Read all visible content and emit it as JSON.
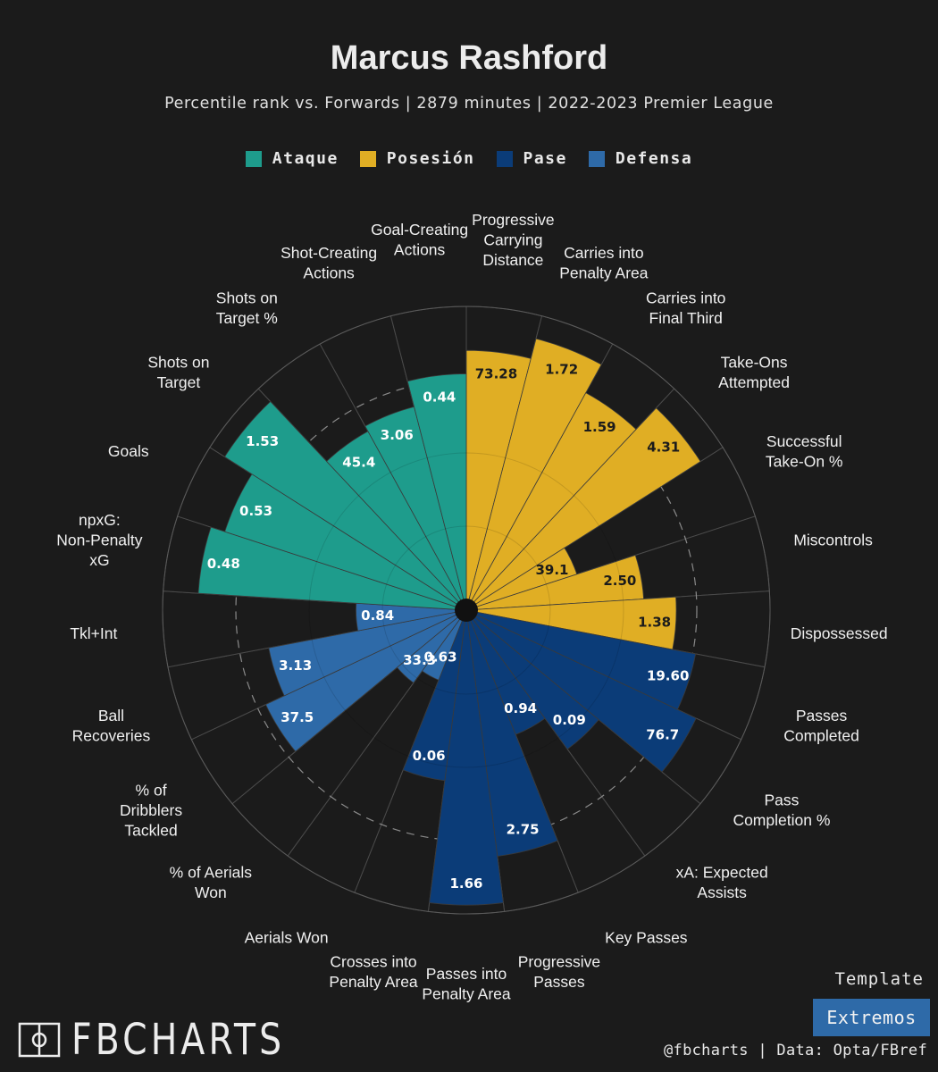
{
  "header": {
    "title": "Marcus Rashford",
    "subtitle": "Percentile rank vs. Forwards | 2879 minutes | 2022-2023 Premier League"
  },
  "legend": [
    {
      "name": "Ataque",
      "color": "#1e9c8c"
    },
    {
      "name": "Posesión",
      "color": "#e0ae24"
    },
    {
      "name": "Pase",
      "color": "#0b3c78"
    },
    {
      "name": "Defensa",
      "color": "#2e6aa8"
    }
  ],
  "footer": {
    "brand": "FBCHARTS",
    "template_label": "Template",
    "template_value": "Extremos",
    "credit": "@fbcharts | Data: Opta/FBref"
  },
  "chart_data": {
    "type": "polar-bar",
    "title": "Marcus Rashford",
    "radial_max": 100,
    "ring_levels": [
      25,
      50,
      75,
      100
    ],
    "dashed_ring": 75,
    "params": [
      {
        "label": "Progressive Carrying Distance",
        "group": "Posesión",
        "value": "73.28",
        "percentile": 85
      },
      {
        "label": "Carries into Penalty Area",
        "group": "Posesión",
        "value": "1.72",
        "percentile": 92
      },
      {
        "label": "Carries into Final Third",
        "group": "Posesión",
        "value": "1.59",
        "percentile": 81
      },
      {
        "label": "Take-Ons Attempted",
        "group": "Posesión",
        "value": "4.31",
        "percentile": 91
      },
      {
        "label": "Successful Take-On %",
        "group": "Posesión",
        "value": "39.1",
        "percentile": 36
      },
      {
        "label": "Miscontrols",
        "group": "Posesión",
        "value": "2.50",
        "percentile": 57
      },
      {
        "label": "Dispossessed",
        "group": "Posesión",
        "value": "1.38",
        "percentile": 68
      },
      {
        "label": "Passes Completed",
        "group": "Pase",
        "value": "19.60",
        "percentile": 76
      },
      {
        "label": "Pass Completion %",
        "group": "Pase",
        "value": "76.7",
        "percentile": 83
      },
      {
        "label": "xA: Expected Assists",
        "group": "Pase",
        "value": "0.09",
        "percentile": 55
      },
      {
        "label": "Key Passes",
        "group": "Pase",
        "value": "0.94",
        "percentile": 42
      },
      {
        "label": "Progressive Passes",
        "group": "Pase",
        "value": "2.75",
        "percentile": 81
      },
      {
        "label": "Passes into Penalty Area",
        "group": "Pase",
        "value": "1.66",
        "percentile": 97
      },
      {
        "label": "Crosses into Penalty Area",
        "group": "Pase",
        "value": "0.06",
        "percentile": 55
      },
      {
        "label": "Aerials Won",
        "group": "Defensa",
        "value": "0.63",
        "percentile": 22
      },
      {
        "label": "% of Aerials Won",
        "group": "Defensa",
        "value": "33.3",
        "percentile": 27
      },
      {
        "label": "% of Dribblers Tackled",
        "group": "Defensa",
        "value": "37.5",
        "percentile": 72
      },
      {
        "label": "Ball Recoveries",
        "group": "Defensa",
        "value": "3.13",
        "percentile": 65
      },
      {
        "label": "Tkl+Int",
        "group": "Defensa",
        "value": "0.84",
        "percentile": 34
      },
      {
        "label": "npxG: Non-Penalty xG",
        "group": "Ataque",
        "value": "0.48",
        "percentile": 88
      },
      {
        "label": "Goals",
        "group": "Ataque",
        "value": "0.53",
        "percentile": 83
      },
      {
        "label": "Shots on Target",
        "group": "Ataque",
        "value": "1.53",
        "percentile": 94
      },
      {
        "label": "Shots on Target %",
        "group": "Ataque",
        "value": "45.4",
        "percentile": 66
      },
      {
        "label": "Shot-Creating Actions",
        "group": "Ataque",
        "value": "3.06",
        "percentile": 68
      },
      {
        "label": "Goal-Creating Actions",
        "group": "Ataque",
        "value": "0.44",
        "percentile": 77
      }
    ]
  }
}
